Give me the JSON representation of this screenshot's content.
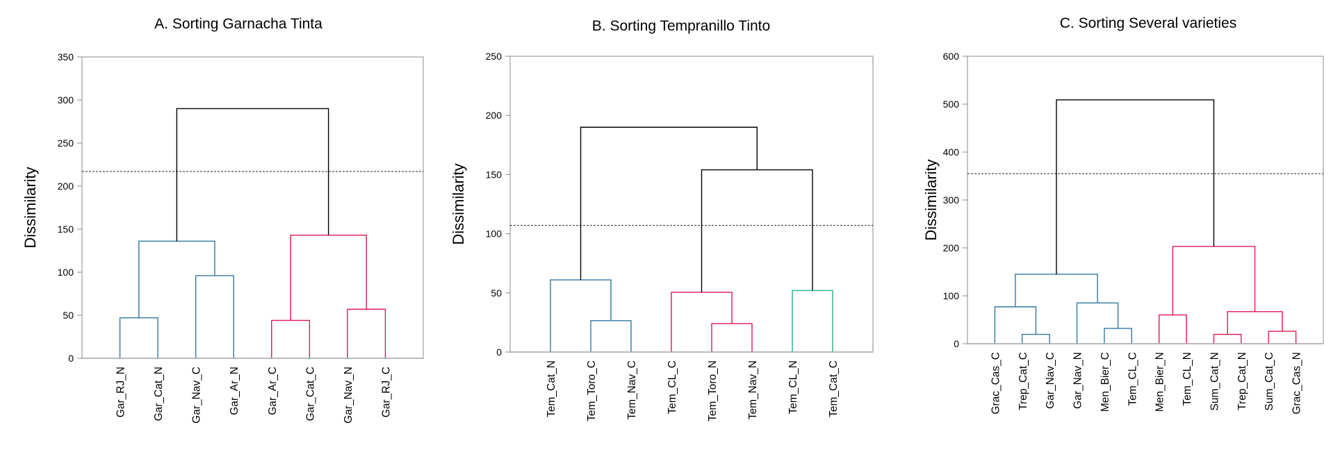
{
  "colors": {
    "blue": "#31779f",
    "red": "#e0164f",
    "green": "#20b27a",
    "black": "#000000",
    "axis": "#b0b0b0"
  },
  "chart_data": [
    {
      "type": "dendrogram",
      "title": "A. Sorting Garnacha Tinta",
      "ylabel": "Dissimilarity",
      "ylim": [
        0,
        350
      ],
      "yticks": [
        0,
        50,
        100,
        150,
        200,
        250,
        300,
        350
      ],
      "cut_line": 217,
      "leaves": [
        "Gar_RJ_N",
        "Gar_Cat_N",
        "Gar_Nav_C",
        "Gar_Ar_N",
        "Gar_Ar_C",
        "Gar_Cat_C",
        "Gar_Nav_N",
        "Gar_RJ_C"
      ],
      "merges": [
        {
          "a": "Gar_RJ_N",
          "b": "Gar_Cat_N",
          "height": 47,
          "color": "blue"
        },
        {
          "a": "Gar_Nav_C",
          "b": "Gar_Ar_N",
          "height": 96,
          "color": "blue"
        },
        {
          "a": 0,
          "b": 1,
          "height": 136,
          "color": "blue"
        },
        {
          "a": "Gar_Ar_C",
          "b": "Gar_Cat_C",
          "height": 44,
          "color": "red"
        },
        {
          "a": "Gar_Nav_N",
          "b": "Gar_RJ_C",
          "height": 57,
          "color": "red"
        },
        {
          "a": 3,
          "b": 4,
          "height": 143,
          "color": "red"
        },
        {
          "a": 2,
          "b": 5,
          "height": 290,
          "color": "black"
        }
      ]
    },
    {
      "type": "dendrogram",
      "title": "B. Sorting  Tempranillo Tinto",
      "ylabel": "Dissimilarity",
      "ylim": [
        0,
        250
      ],
      "yticks": [
        0,
        50,
        100,
        150,
        200,
        250
      ],
      "cut_line": 107,
      "leaves": [
        "Tem_Cat_N",
        "Tem_Toro_C",
        "Tem_Nav_C",
        "Tem_CL_C",
        "Tem_Toro_N",
        "Tem_Nav_N",
        "Tem_CL_N",
        "Tem_Cat_C"
      ],
      "merges": [
        {
          "a": "Tem_Toro_C",
          "b": "Tem_Nav_C",
          "height": 26.5,
          "color": "blue"
        },
        {
          "a": "Tem_Cat_N",
          "b": 0,
          "height": 61,
          "color": "blue"
        },
        {
          "a": "Tem_Toro_N",
          "b": "Tem_Nav_N",
          "height": 24,
          "color": "red"
        },
        {
          "a": "Tem_CL_C",
          "b": 2,
          "height": 50.5,
          "color": "red"
        },
        {
          "a": "Tem_CL_N",
          "b": "Tem_Cat_C",
          "height": 52,
          "color": "green"
        },
        {
          "a": 3,
          "b": 4,
          "height": 154,
          "color": "black"
        },
        {
          "a": 1,
          "b": 5,
          "height": 190,
          "color": "black"
        }
      ]
    },
    {
      "type": "dendrogram",
      "title": "C. Sorting  Several varieties",
      "ylabel": "Dissimilarity",
      "ylim": [
        0,
        600
      ],
      "yticks": [
        0,
        100,
        200,
        300,
        400,
        500,
        600
      ],
      "cut_line": 355,
      "leaves": [
        "Grac_Cas_C",
        "Trep_Cat_C",
        "Gar_Nav_C",
        "Gar_Nav_N",
        "Men_Bier_C",
        "Tem_CL_C",
        "Men_Bier_N",
        "Tem_CL_N",
        "Sum_Cat_N",
        "Trep_Cat_N",
        "Sum_Cat_C",
        "Grac_Cas_N"
      ],
      "merges": [
        {
          "a": "Trep_Cat_C",
          "b": "Gar_Nav_C",
          "height": 19.5,
          "color": "blue"
        },
        {
          "a": "Grac_Cas_C",
          "b": 0,
          "height": 77,
          "color": "blue"
        },
        {
          "a": "Men_Bier_C",
          "b": "Tem_CL_C",
          "height": 32,
          "color": "blue"
        },
        {
          "a": "Gar_Nav_N",
          "b": 2,
          "height": 85,
          "color": "blue"
        },
        {
          "a": 1,
          "b": 3,
          "height": 145,
          "color": "blue"
        },
        {
          "a": "Men_Bier_N",
          "b": "Tem_CL_N",
          "height": 60,
          "color": "red"
        },
        {
          "a": "Sum_Cat_N",
          "b": "Trep_Cat_N",
          "height": 19.5,
          "color": "red"
        },
        {
          "a": "Sum_Cat_C",
          "b": "Grac_Cas_N",
          "height": 26,
          "color": "red"
        },
        {
          "a": 6,
          "b": 7,
          "height": 67,
          "color": "red"
        },
        {
          "a": 5,
          "b": 8,
          "height": 203,
          "color": "red"
        },
        {
          "a": 4,
          "b": 9,
          "height": 509,
          "color": "black"
        }
      ]
    }
  ]
}
